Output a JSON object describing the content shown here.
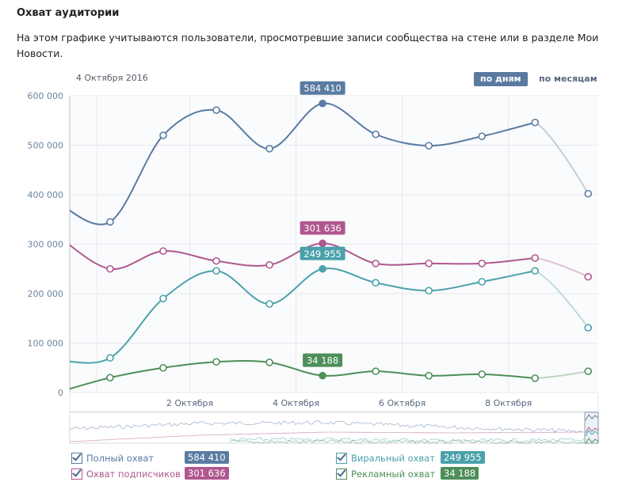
{
  "header": {
    "title": "Охват аудитории",
    "description": "На этом графике учитываются пользователи, просмотревшие записи сообщества на стене или в разделе Мои Новости."
  },
  "date_label": "4 Октября 2016",
  "period_buttons": {
    "days": "по дням",
    "months": "по месяцам",
    "selected": "days"
  },
  "colors": {
    "full": "#5a7ba2",
    "subscribers": "#b0578f",
    "viral": "#4aa1ab",
    "ads": "#4d8f58",
    "grid": "#e7e8ec",
    "plot_bg": "#fafbfc"
  },
  "chart_data": {
    "type": "line",
    "x_unit": "day of October 2016",
    "x": [
      0,
      1,
      2,
      3,
      4,
      5,
      6,
      7,
      8,
      9,
      10
    ],
    "xlim": [
      0.24,
      10.19
    ],
    "ylim": [
      0,
      600000
    ],
    "yticks": [
      "0",
      "100 000",
      "200 000",
      "300 000",
      "400 000",
      "500 000",
      "600 000"
    ],
    "yticks_values": [
      0,
      100000,
      200000,
      300000,
      400000,
      500000,
      600000
    ],
    "xticks": [
      {
        "day": 2.5,
        "label": "2 Октября"
      },
      {
        "day": 4.5,
        "label": "4 Октября"
      },
      {
        "day": 6.5,
        "label": "6 Октября"
      },
      {
        "day": 8.5,
        "label": "8 Октября"
      }
    ],
    "grid": true,
    "highlighted_day": 5,
    "incomplete_last_segment": true,
    "series": [
      {
        "name": "Полный охват",
        "key": "full",
        "values": [
          385000,
          345000,
          520000,
          571000,
          493000,
          584410,
          522000,
          499000,
          518000,
          546000,
          402000
        ],
        "label": "584 410"
      },
      {
        "name": "Охват подписчиков",
        "key": "subscribers",
        "values": [
          318000,
          250000,
          286000,
          266000,
          258000,
          301636,
          261000,
          261000,
          261000,
          272000,
          234000
        ],
        "label": "301 636"
      },
      {
        "name": "Виральный охват",
        "key": "viral",
        "values": [
          66000,
          70000,
          190000,
          246000,
          179000,
          249955,
          222000,
          206000,
          224000,
          246000,
          131000
        ],
        "label": "249 955"
      },
      {
        "name": "Рекламный охват",
        "key": "ads",
        "values": [
          0,
          30000,
          50000,
          62000,
          61000,
          34188,
          43000,
          34000,
          37000,
          29000,
          43000
        ],
        "label": "34 188"
      }
    ]
  }
}
